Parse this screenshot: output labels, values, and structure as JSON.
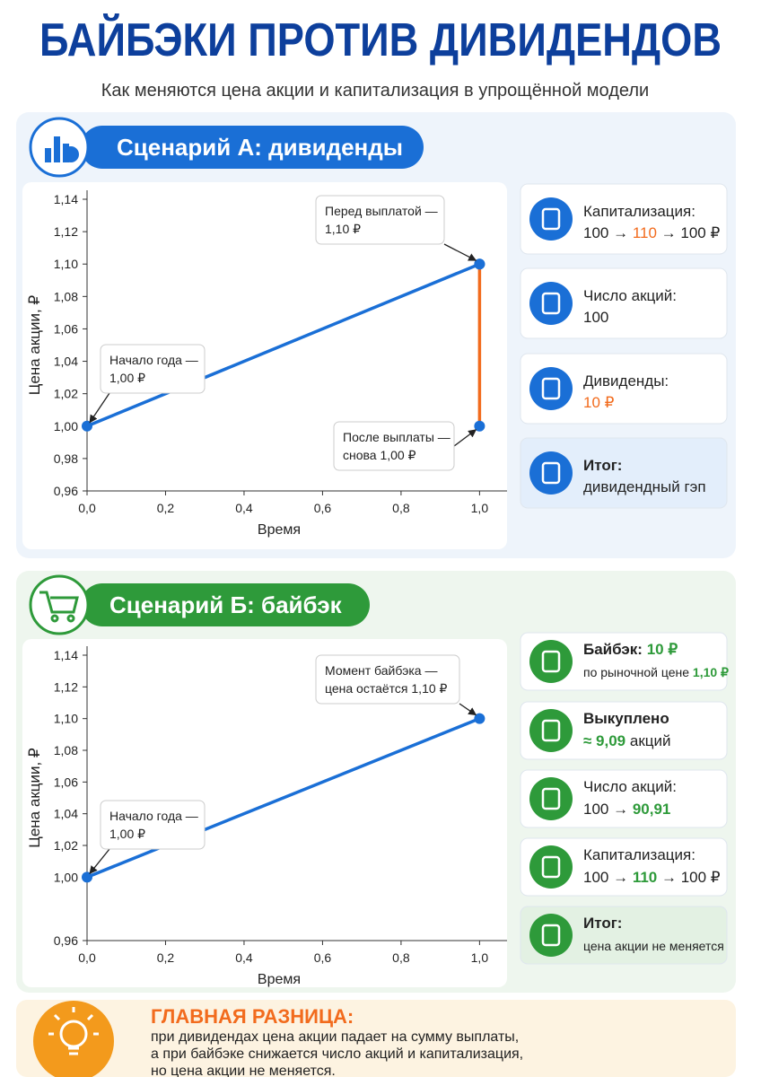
{
  "header": {
    "title": "БАЙБЭКИ ПРОТИВ ДИВИДЕНДОВ",
    "subtitle": "Как меняются цена акции и капитализация в упрощённой модели"
  },
  "scenarios": [
    {
      "title": "Сценарий А: дивиденды",
      "cards": [
        {
          "lines": [
            [
              {
                "text": "Капитализация:"
              }
            ],
            [
              {
                "text": "100 → "
              },
              {
                "text": "110",
                "color": "#f26b1d"
              },
              {
                "text": " → 100 ₽"
              }
            ]
          ]
        },
        {
          "lines": [
            [
              {
                "text": "Число акций:"
              }
            ],
            [
              {
                "text": "100"
              }
            ]
          ]
        },
        {
          "lines": [
            [
              {
                "text": "Дивиденды:"
              }
            ],
            [
              {
                "text": "10 ₽",
                "color": "#f26b1d"
              }
            ]
          ]
        },
        {
          "highlight": true,
          "lines": [
            [
              {
                "text": "Итог:",
                "bold": true
              }
            ],
            [
              {
                "text": "дивидендный гэп"
              }
            ]
          ]
        }
      ]
    },
    {
      "title": "Сценарий Б: байбэк",
      "cards": [
        {
          "lines": [
            [
              {
                "text": "Байбэк: ",
                "bold": true
              },
              {
                "text": "10 ₽",
                "color": "#2e9a3a",
                "bold": true
              }
            ],
            [
              {
                "text": "по рыночной цене ",
                "small": true
              },
              {
                "text": "1,10 ₽",
                "color": "#2e9a3a",
                "bold": true,
                "small": true
              }
            ]
          ]
        },
        {
          "lines": [
            [
              {
                "text": "Выкуплено",
                "bold": true
              }
            ],
            [
              {
                "text": "≈ 9,09",
                "color": "#2e9a3a",
                "bold": true
              },
              {
                "text": " акций"
              }
            ]
          ]
        },
        {
          "lines": [
            [
              {
                "text": "Число акций:"
              }
            ],
            [
              {
                "text": "100 → "
              },
              {
                "text": "90,91",
                "color": "#2e9a3a",
                "bold": true
              }
            ]
          ]
        },
        {
          "lines": [
            [
              {
                "text": "Капитализация:"
              }
            ],
            [
              {
                "text": "100 → "
              },
              {
                "text": "110",
                "color": "#2e9a3a",
                "bold": true
              },
              {
                "text": " → 100 ₽"
              }
            ]
          ]
        },
        {
          "highlight": true,
          "lines": [
            [
              {
                "text": "Итог:",
                "bold": true
              }
            ],
            [
              {
                "text": "цена акции не меняется",
                "small": true
              }
            ]
          ]
        }
      ]
    }
  ],
  "chart_data": [
    {
      "type": "line",
      "xlabel": "Время",
      "ylabel": "Цена акции, ₽",
      "xlim": [
        0,
        1.07
      ],
      "ylim": [
        0.96,
        1.14
      ],
      "xticks": [
        {
          "value": 0,
          "label": "0,0"
        },
        {
          "value": 0.2,
          "label": "0,2"
        },
        {
          "value": 0.4,
          "label": "0,4"
        },
        {
          "value": 0.6,
          "label": "0,6"
        },
        {
          "value": 0.8,
          "label": "0,8"
        },
        {
          "value": 1,
          "label": "1,0"
        }
      ],
      "yticks": [
        {
          "value": 0.96,
          "label": "0,96"
        },
        {
          "value": 0.98,
          "label": "0,98"
        },
        {
          "value": 1,
          "label": "1,00"
        },
        {
          "value": 1.02,
          "label": "1,02"
        },
        {
          "value": 1.04,
          "label": "1,04"
        },
        {
          "value": 1.06,
          "label": "1,06"
        },
        {
          "value": 1.08,
          "label": "1,08"
        },
        {
          "value": 1.1,
          "label": "1,10"
        },
        {
          "value": 1.12,
          "label": "1,12"
        },
        {
          "value": 1.14,
          "label": "1,14"
        }
      ],
      "series": [
        {
          "color": "#1a6fd6",
          "marker_color": "#1a6fd6",
          "x": [
            0,
            1
          ],
          "values": [
            1.0,
            1.1
          ]
        },
        {
          "color": "#f26b1d",
          "marker_color": "#1a6fd6",
          "x": [
            1,
            1
          ],
          "values": [
            1.1,
            1.0
          ]
        }
      ],
      "annotations": [
        {
          "lines": [
            "Начало года —",
            "1,00 ₽"
          ]
        },
        {
          "lines": [
            "Перед выплатой —",
            "1,10 ₽"
          ]
        },
        {
          "lines": [
            "После выплаты —",
            "снова 1,00 ₽"
          ]
        }
      ]
    },
    {
      "type": "line",
      "xlabel": "Время",
      "ylabel": "Цена акции, ₽",
      "xlim": [
        0,
        1.07
      ],
      "ylim": [
        0.96,
        1.14
      ],
      "xticks": [
        {
          "value": 0,
          "label": "0,0"
        },
        {
          "value": 0.2,
          "label": "0,2"
        },
        {
          "value": 0.4,
          "label": "0,4"
        },
        {
          "value": 0.6,
          "label": "0,6"
        },
        {
          "value": 0.8,
          "label": "0,8"
        },
        {
          "value": 1,
          "label": "1,0"
        }
      ],
      "yticks": [
        {
          "value": 0.96,
          "label": "0,96"
        },
        {
          "value": 1,
          "label": "1,00"
        },
        {
          "value": 1.02,
          "label": "1,02"
        },
        {
          "value": 1.04,
          "label": "1,04"
        },
        {
          "value": 1.06,
          "label": "1,06"
        },
        {
          "value": 1.08,
          "label": "1,08"
        },
        {
          "value": 1.1,
          "label": "1,10"
        },
        {
          "value": 1.12,
          "label": "1,12"
        },
        {
          "value": 1.14,
          "label": "1,14"
        }
      ],
      "series": [
        {
          "color": "#1a6fd6",
          "marker_color": "#1a6fd6",
          "x": [
            0,
            1
          ],
          "values": [
            1.0,
            1.1
          ]
        }
      ],
      "annotations": [
        {
          "lines": [
            "Начало года —",
            "1,00 ₽"
          ]
        },
        {
          "lines": [
            "Момент байбэка —",
            "цена остаётся 1,10 ₽"
          ]
        }
      ]
    }
  ],
  "footer": {
    "title": "ГЛАВНАЯ РАЗНИЦА:",
    "lines": [
      "при дивидендах цена акции падает на сумму выплаты,",
      "а при байбэке снижается число акций и капитализация,",
      "но цена акции не меняется."
    ]
  }
}
